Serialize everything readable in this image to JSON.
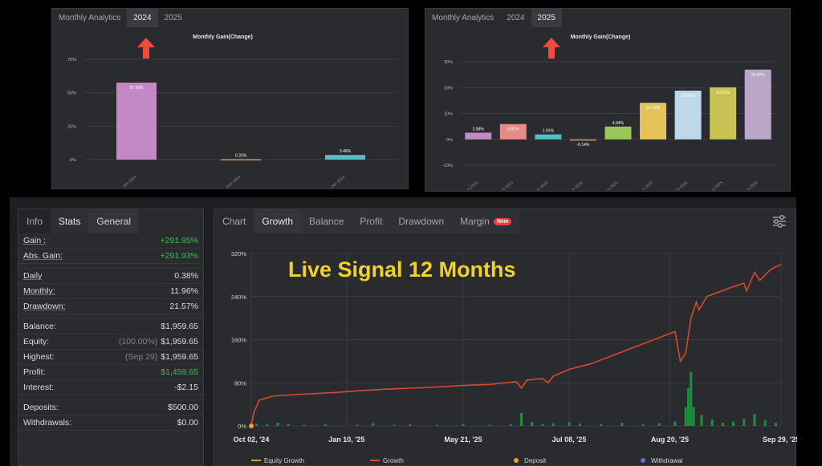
{
  "monthly_left": {
    "tabs": [
      {
        "label": "Monthly Analytics",
        "active": false
      },
      {
        "label": "2024",
        "active": true
      },
      {
        "label": "2025",
        "active": false
      }
    ]
  },
  "monthly_right": {
    "tabs": [
      {
        "label": "Monthly Analytics",
        "active": false
      },
      {
        "label": "2024",
        "active": false
      },
      {
        "label": "2025",
        "active": true
      }
    ]
  },
  "stats": {
    "tabs": [
      {
        "label": "Info"
      },
      {
        "label": "Stats"
      },
      {
        "label": "General"
      }
    ],
    "rows": [
      {
        "label": "Gain :",
        "value": "+291.95%",
        "green": true,
        "underline": true
      },
      {
        "label": "Abs. Gain:",
        "value": "+291.93%",
        "green": true,
        "underline": true
      },
      {
        "gap": true
      },
      {
        "label": "Daily",
        "value": "0.38%",
        "underline": true
      },
      {
        "label": "Monthly:",
        "value": "11.96%",
        "underline": true
      },
      {
        "label": "Drawdown:",
        "value": "21.57%",
        "underline": true
      },
      {
        "gap": true
      },
      {
        "label": "Balance:",
        "value": "$1,959.65"
      },
      {
        "label": "Equity:",
        "sub": "(100.00%)",
        "value": "$1,959.65"
      },
      {
        "label": "Highest:",
        "sub": "(Sep 29)",
        "value": "$1,959.65"
      },
      {
        "label": "Profit:",
        "value": "$1,459.65",
        "green": true
      },
      {
        "label": "Interest:",
        "value": "-$2.15"
      },
      {
        "gap": true
      },
      {
        "label": "Deposits:",
        "value": "$500.00"
      },
      {
        "label": "Withdrawals:",
        "value": "$0.00"
      }
    ]
  },
  "growth": {
    "tabs": [
      {
        "label": "Chart",
        "active": false
      },
      {
        "label": "Growth",
        "active": true
      },
      {
        "label": "Balance",
        "active": false
      },
      {
        "label": "Profit",
        "active": false
      },
      {
        "label": "Drawdown",
        "active": false
      },
      {
        "label": "Margin",
        "active": false,
        "badge": "New"
      }
    ],
    "overlay_title": "Live Signal 12 Months",
    "settings_icon": "sliders-icon"
  },
  "chart_data": [
    {
      "type": "bar",
      "title": "Monthly Gain(Change)",
      "categories": [
        "Oct 2024",
        "Nov 2024",
        "Dec 2024"
      ],
      "values": [
        57.56,
        0.31,
        3.46
      ],
      "value_labels": [
        "57.56%",
        "0.31%",
        "3.46%"
      ],
      "colors": [
        "#c389c4",
        "#c79a6f",
        "#53c1c4"
      ],
      "ylim": [
        0,
        75
      ],
      "yticks": [
        0,
        25,
        50,
        75
      ],
      "ytick_labels": [
        "0%",
        "25%",
        "50%",
        "75%"
      ]
    },
    {
      "type": "bar",
      "title": "Monthly Gain(Change)",
      "categories": [
        "Jan 2025",
        "Feb 2025",
        "Mar 2025",
        "Apr 2025",
        "May 2025",
        "Jun 2025",
        "Jul 2025",
        "Aug 2025",
        "Sep 2025"
      ],
      "values": [
        2.58,
        5.92,
        1.91,
        -0.14,
        4.94,
        14.13,
        18.83,
        20.11,
        26.97
      ],
      "value_labels": [
        "2.58%",
        "5.92%",
        "1.91%",
        "-0.14%",
        "4.94%",
        "14.13%",
        "18.83%",
        "20.11%",
        "26.97%"
      ],
      "colors": [
        "#c389c4",
        "#e88a86",
        "#53c1c4",
        "#c79a6f",
        "#9bc65a",
        "#e6c35a",
        "#bcd8ea",
        "#c9c356",
        "#b9a6c9"
      ],
      "ylim": [
        -10,
        30
      ],
      "yticks": [
        -10,
        0,
        10,
        20,
        30
      ],
      "ytick_labels": [
        "-10%",
        "0%",
        "10%",
        "20%",
        "30%"
      ]
    },
    {
      "type": "line",
      "xtick_labels": [
        "Oct 02, '24",
        "Jan 10, '25",
        "May 21, '25",
        "Jul 08, '25",
        "Aug 20, '25",
        "Sep 29, '25"
      ],
      "xtick_pos": [
        0,
        0.18,
        0.4,
        0.6,
        0.79,
        1
      ],
      "ytick_labels": [
        "0%",
        "80%",
        "160%",
        "240%",
        "320%"
      ],
      "yticks": [
        0,
        80,
        160,
        240,
        320
      ],
      "ylim": [
        0,
        320
      ],
      "legend": [
        "Equity Growth",
        "Growth",
        "Deposit",
        "Withdrawal"
      ],
      "series_growth": [
        [
          0,
          0
        ],
        [
          0.005,
          25
        ],
        [
          0.015,
          48
        ],
        [
          0.04,
          55
        ],
        [
          0.08,
          58
        ],
        [
          0.12,
          60
        ],
        [
          0.16,
          62
        ],
        [
          0.2,
          65
        ],
        [
          0.25,
          68
        ],
        [
          0.3,
          70
        ],
        [
          0.35,
          72
        ],
        [
          0.4,
          75
        ],
        [
          0.45,
          77
        ],
        [
          0.5,
          82
        ],
        [
          0.51,
          70
        ],
        [
          0.52,
          85
        ],
        [
          0.55,
          88
        ],
        [
          0.56,
          80
        ],
        [
          0.57,
          92
        ],
        [
          0.6,
          105
        ],
        [
          0.64,
          115
        ],
        [
          0.68,
          130
        ],
        [
          0.72,
          145
        ],
        [
          0.76,
          160
        ],
        [
          0.8,
          175
        ],
        [
          0.81,
          120
        ],
        [
          0.82,
          135
        ],
        [
          0.83,
          200
        ],
        [
          0.84,
          230
        ],
        [
          0.845,
          215
        ],
        [
          0.86,
          240
        ],
        [
          0.9,
          255
        ],
        [
          0.93,
          265
        ],
        [
          0.935,
          250
        ],
        [
          0.95,
          285
        ],
        [
          0.96,
          270
        ],
        [
          0.98,
          290
        ],
        [
          1,
          300
        ]
      ],
      "series_volume": [
        [
          0.01,
          4
        ],
        [
          0.03,
          3
        ],
        [
          0.05,
          6
        ],
        [
          0.07,
          3
        ],
        [
          0.1,
          2
        ],
        [
          0.14,
          3
        ],
        [
          0.2,
          2
        ],
        [
          0.23,
          5
        ],
        [
          0.27,
          2
        ],
        [
          0.3,
          3
        ],
        [
          0.35,
          2
        ],
        [
          0.4,
          3
        ],
        [
          0.45,
          2
        ],
        [
          0.49,
          3
        ],
        [
          0.51,
          24
        ],
        [
          0.53,
          7
        ],
        [
          0.55,
          3
        ],
        [
          0.57,
          5
        ],
        [
          0.6,
          7
        ],
        [
          0.62,
          4
        ],
        [
          0.66,
          3
        ],
        [
          0.7,
          6
        ],
        [
          0.74,
          3
        ],
        [
          0.77,
          5
        ],
        [
          0.8,
          8
        ],
        [
          0.82,
          35
        ],
        [
          0.825,
          70
        ],
        [
          0.83,
          100
        ],
        [
          0.835,
          35
        ],
        [
          0.85,
          20
        ],
        [
          0.87,
          12
        ],
        [
          0.89,
          6
        ],
        [
          0.91,
          8
        ],
        [
          0.93,
          13
        ],
        [
          0.95,
          22
        ],
        [
          0.97,
          10
        ],
        [
          0.99,
          6
        ]
      ]
    }
  ]
}
